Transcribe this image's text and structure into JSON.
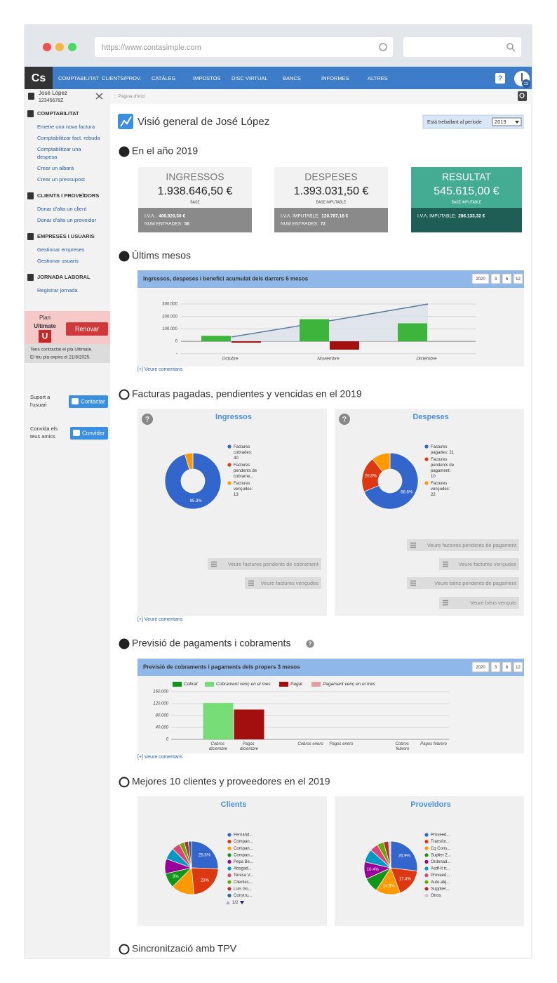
{
  "browser": {
    "url": "https://www.contasimple.com"
  },
  "nav": {
    "logo": "Cs",
    "items": [
      "COMPTABILITAT",
      "CLIENTS/PROV.",
      "CATÀLEG",
      "IMPOSTOS",
      "DISC VIRTUAL",
      "BANCS",
      "INFORMES",
      "ALTRES"
    ],
    "help": "?",
    "badge": "13"
  },
  "user": {
    "name": "José López",
    "id": "12345678Z"
  },
  "breadcrumb": ":: Pàgina d'inici",
  "sidebar": [
    {
      "title": "COMPTABILITAT",
      "links": [
        "Emetre una nova factura",
        "Comptabilitzar fact. rebuda",
        "Comptabilitzar una despesa",
        "Crear un albarà",
        "Crear un pressupost"
      ]
    },
    {
      "title": "CLIENTS I PROVEÏDORS",
      "links": [
        "Donar d'alta un client",
        "Donar d'alta un proveidor"
      ]
    },
    {
      "title": "EMPRESES I USUARIS",
      "links": [
        "Gestionar empreses",
        "Gestionar usuaris"
      ]
    },
    {
      "title": "JORNADA LABORAL",
      "links": [
        "Registrar jornada"
      ]
    }
  ],
  "plan": {
    "label": "Plan",
    "name": "Ultimate",
    "icon": "U",
    "button": "Renovar",
    "note": [
      "Tens contractat el pla Ultimate.",
      "El teu pla expira el 21/8/2025."
    ]
  },
  "invite": [
    {
      "text": "Suport a l'usuari",
      "button": "Contactar"
    },
    {
      "text": "Convida els teus amics",
      "button": "Convidar"
    }
  ],
  "main": {
    "title": "Visió general de José López",
    "period_label": "Està treballant al període",
    "period": "2019"
  },
  "year": {
    "title": "En el año 2019",
    "cards": [
      {
        "title": "INGRESSOS",
        "amount": "1.938.646,50 €",
        "sub": "BASE",
        "details": [
          {
            "label": "I.V.A.:",
            "value": "406.920,50 €"
          },
          {
            "label": "NUM ENTRADES:",
            "value": "56"
          }
        ]
      },
      {
        "title": "DESPESES",
        "amount": "1.393.031,50 €",
        "sub": "BASE IMPUTABLE",
        "details": [
          {
            "label": "I.V.A. IMPUTABLE:",
            "value": "120.787,18 €"
          },
          {
            "label": "NUM ENTRADES:",
            "value": "72"
          }
        ]
      },
      {
        "title": "RESULTAT",
        "amount": "545.615,00 €",
        "sub": "BASE IMPUTABLE",
        "details": [
          {
            "label": "I.V.A. IMPUTABLE:",
            "value": "286.133,32 €"
          }
        ]
      }
    ]
  },
  "recent": {
    "title": "Últims mesos",
    "panel_title": "Ingressos, despeses i benefici acumulat dels darrers 6 mesos",
    "buttons": [
      "2020",
      "3",
      "6",
      "12"
    ],
    "comments": "[+] Veure comentaris",
    "chart": {
      "type": "bar",
      "categories": [
        "Octubre",
        "Noviembre",
        "Diciembre"
      ],
      "series": [
        {
          "type": "bar",
          "color": "#3db53d",
          "values": [
            44000,
            178000,
            145000
          ]
        },
        {
          "type": "bar",
          "color": "#a31010",
          "values": [
            -11000,
            -67000,
            null
          ]
        },
        {
          "type": "area",
          "color": "#5b7ba0",
          "values": [
            35000,
            165000,
            300000
          ]
        }
      ],
      "ylim": [
        -100000,
        320000
      ],
      "yticks": [
        {
          "value": -100000,
          "label": "-"
        },
        0,
        {
          "value": 100000,
          "label": "100.000"
        },
        {
          "value": 200000,
          "label": "200.000"
        },
        {
          "value": 300000,
          "label": "300.000"
        }
      ],
      "grid": true
    }
  },
  "invoices": {
    "title": "Facturas pagadas, pendientes y vencidas en el 2019",
    "comments": "[+] Veure comentaris",
    "charts": [
      {
        "type": "donut",
        "title": "Ingressos",
        "help": "?",
        "categories": [
          "Factures cobrades: 40",
          "Factures pendents de cobrame...",
          "Factures vençudes: 13"
        ],
        "values": [
          95.3,
          0,
          4.7
        ],
        "value_labels": [
          "95.3%",
          null,
          null
        ],
        "colors": [
          "#3366cc",
          "#dc3912",
          "#ff9900"
        ],
        "buttons": [
          "Veure factures pendents de cobrament",
          "Veure factures vençudes"
        ]
      },
      {
        "type": "donut",
        "title": "Despeses",
        "help": "?",
        "categories": [
          "Factures pagades: 21",
          "Factures pendents de pagament: 10",
          "Factures vençudes: 22"
        ],
        "values": [
          68.8,
          20.5,
          10.7
        ],
        "value_labels": [
          "68.8%",
          "20.5%",
          null
        ],
        "colors": [
          "#3366cc",
          "#dc3912",
          "#ff9900"
        ],
        "buttons": [
          "Veure factures pendents de pagament",
          "Veure factures vençudes",
          "Veure béns pendents de pagament",
          "Veure béns vençuts"
        ]
      }
    ]
  },
  "forecast": {
    "title": "Previsió de pagaments i cobraments",
    "help": "?",
    "panel_title": "Previsió de cobraments i pagaments dels propers 3 mesos",
    "buttons": [
      "2020",
      "3",
      "6",
      "12"
    ],
    "comments": "[+] Veure comentaris",
    "chart": {
      "type": "bar",
      "stacked": true,
      "categories": [
        "Cobros diciembre",
        "Pagos diciembre",
        "Cobros enero",
        "Pagos enero",
        "Cobros febrero",
        "Pagos febrero"
      ],
      "series": [
        {
          "name": "Cobrat",
          "color": "#109618",
          "values": [
            0,
            0,
            0,
            0,
            0,
            0
          ]
        },
        {
          "name": "Cobrament venç en el mes",
          "color": "#77dd77",
          "values": [
            122000,
            0,
            0,
            0,
            0,
            0
          ]
        },
        {
          "name": "Pagat",
          "color": "#a30f0f",
          "values": [
            0,
            100000,
            0,
            0,
            0,
            0
          ]
        },
        {
          "name": "Pagament venç en el mes",
          "color": "#e0a0a0",
          "values": [
            0,
            0,
            0,
            0,
            0,
            0
          ]
        }
      ],
      "ylim": [
        0,
        160000
      ],
      "yticks": [
        0,
        {
          "value": 40000,
          "label": "40.000"
        },
        {
          "value": 80000,
          "label": "80.000"
        },
        {
          "value": 120000,
          "label": "120.000"
        },
        {
          "value": 160000,
          "label": "160.000"
        }
      ],
      "grid": true
    }
  },
  "top10": {
    "title": "Mejores 10 clientes y proveedores en el 2019",
    "charts": [
      {
        "type": "pie",
        "title": "Clients",
        "categories": [
          "Fernand...",
          "Compan...",
          "Compan...",
          "Compan...",
          "Pepa Be...",
          "Abogad...",
          "Teresa V...",
          "Clientes...",
          "Luis Go...",
          "Constru..."
        ],
        "values": [
          25.5,
          23,
          14,
          9,
          9,
          7,
          5,
          3,
          2.5,
          2
        ],
        "value_labels": [
          "25.5%",
          "23%",
          null,
          "9%",
          null,
          null,
          null,
          null,
          null,
          null
        ],
        "colors": [
          "#3366cc",
          "#dc3912",
          "#ff9900",
          "#109618",
          "#990099",
          "#0099c6",
          "#dd4477",
          "#66aa00",
          "#b82e2e",
          "#316395"
        ],
        "pager": "1/2"
      },
      {
        "type": "pie",
        "title": "Proveïdors",
        "categories": [
          "Proveed...",
          "Transfor...",
          "Cq Cons...",
          "Suplier 2...",
          "Ordenad...",
          "Asdf-lt tr...",
          "Proveed...",
          "Auto-alq...",
          "Supplier...",
          "Otros"
        ],
        "values": [
          26.9,
          17.4,
          14.9,
          9,
          10.4,
          8,
          5,
          4,
          3,
          1.4
        ],
        "value_labels": [
          "26.9%",
          "17.4%",
          "14.9%",
          null,
          "10.4%",
          null,
          null,
          null,
          null,
          null
        ],
        "colors": [
          "#3366cc",
          "#dc3912",
          "#ff9900",
          "#109618",
          "#990099",
          "#0099c6",
          "#dd4477",
          "#66aa00",
          "#b82e2e",
          "#cccccc"
        ]
      }
    ]
  },
  "tpv": {
    "title": "Sincronització amb TPV"
  }
}
